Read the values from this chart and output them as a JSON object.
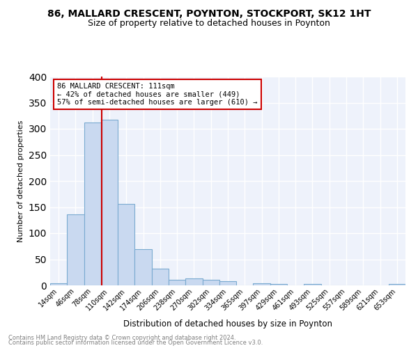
{
  "title": "86, MALLARD CRESCENT, POYNTON, STOCKPORT, SK12 1HT",
  "subtitle": "Size of property relative to detached houses in Poynton",
  "xlabel": "Distribution of detached houses by size in Poynton",
  "ylabel": "Number of detached properties",
  "bar_labels": [
    "14sqm",
    "46sqm",
    "78sqm",
    "110sqm",
    "142sqm",
    "174sqm",
    "206sqm",
    "238sqm",
    "270sqm",
    "302sqm",
    "334sqm",
    "365sqm",
    "397sqm",
    "429sqm",
    "461sqm",
    "493sqm",
    "525sqm",
    "557sqm",
    "589sqm",
    "621sqm",
    "653sqm"
  ],
  "bar_values": [
    4,
    136,
    312,
    318,
    156,
    70,
    32,
    11,
    14,
    11,
    8,
    0,
    4,
    3,
    0,
    3,
    0,
    0,
    0,
    0,
    3
  ],
  "bar_color": "#c9d9f0",
  "bar_edge_color": "#7aaad0",
  "background_color": "#eef2fb",
  "grid_color": "#ffffff",
  "annotation_line1": "86 MALLARD CRESCENT: 111sqm",
  "annotation_line2": "← 42% of detached houses are smaller (449)",
  "annotation_line3": "57% of semi-detached houses are larger (610) →",
  "annotation_box_color": "#ffffff",
  "annotation_box_edge": "#cc0000",
  "property_line_color": "#cc0000",
  "footnote1": "Contains HM Land Registry data © Crown copyright and database right 2024.",
  "footnote2": "Contains public sector information licensed under the Open Government Licence v3.0.",
  "ylim": [
    0,
    400
  ],
  "yticks": [
    0,
    50,
    100,
    150,
    200,
    250,
    300,
    350,
    400
  ]
}
